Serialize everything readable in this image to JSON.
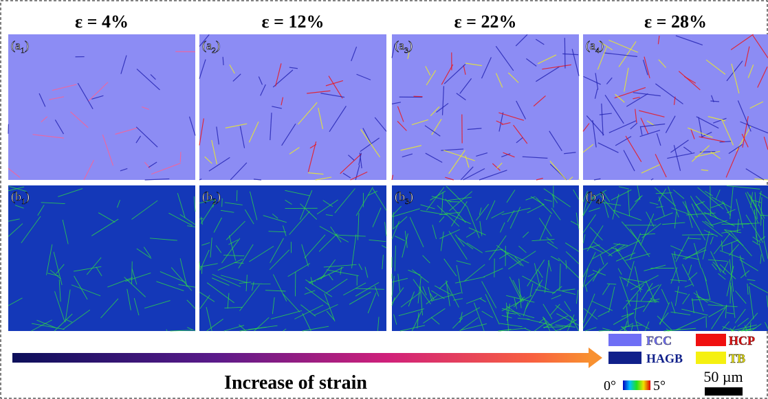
{
  "headers": [
    "ε = 4%",
    "ε = 12%",
    "ε = 22%",
    "ε = 28%"
  ],
  "panels": {
    "row_a": [
      [
        "(a",
        "1",
        ")"
      ],
      [
        "(a",
        "2",
        ")"
      ],
      [
        "(a",
        "3",
        ")"
      ],
      [
        "(a",
        "4",
        ")"
      ]
    ],
    "row_b": [
      [
        "(b",
        "1",
        ")"
      ],
      [
        "(b",
        "2",
        ")"
      ],
      [
        "(b",
        "3",
        ")"
      ],
      [
        "(b",
        "4",
        ")"
      ]
    ]
  },
  "arrow_label": "Increase of strain",
  "legend": {
    "fcc": "FCC",
    "hcp": "HCP",
    "hagb": "HAGB",
    "tb": "TB"
  },
  "colorbar": {
    "min": "0°",
    "max": "5°"
  },
  "scale_bar": "50 µm"
}
